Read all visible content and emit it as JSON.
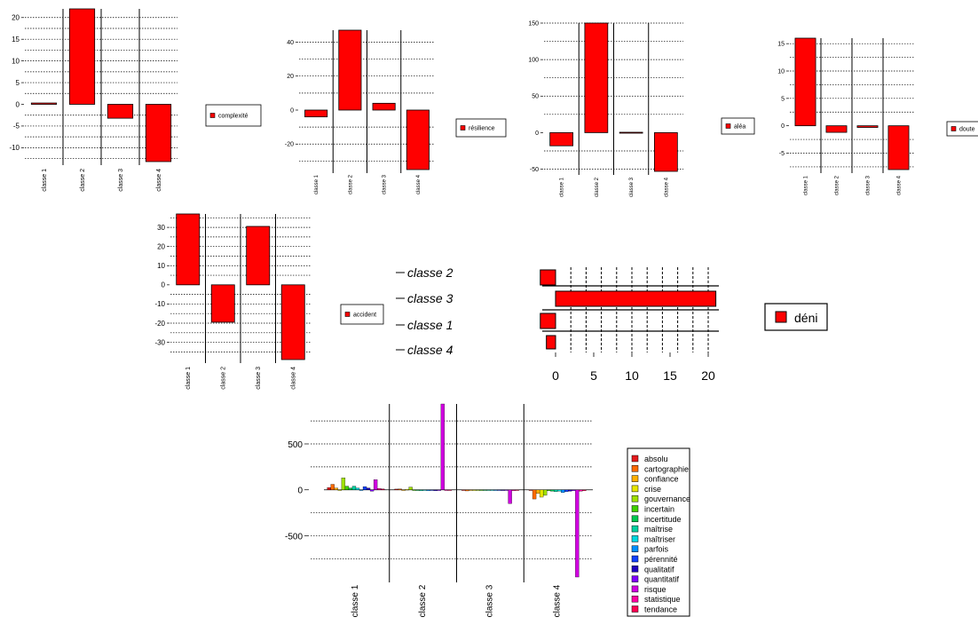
{
  "chart_data": [
    {
      "type": "bar",
      "categories": [
        "classe 1",
        "classe 2",
        "classe 3",
        "classe 4"
      ],
      "values": [
        0.3,
        22,
        -3.2,
        -13.2
      ],
      "yticks": [
        -10,
        -5,
        0,
        5,
        10,
        15,
        20
      ],
      "legend": [
        "complexité"
      ],
      "color": "#ff0000"
    },
    {
      "type": "bar",
      "categories": [
        "classe 1",
        "classe 2",
        "classe 3",
        "classe 4"
      ],
      "values": [
        -4,
        47,
        4,
        -35
      ],
      "yticks": [
        -20,
        0,
        20,
        40
      ],
      "legend": [
        "résilience"
      ],
      "color": "#ff0000"
    },
    {
      "type": "bar",
      "categories": [
        "classe 1",
        "classe 2",
        "classe 3",
        "classe 4"
      ],
      "values": [
        -18,
        150,
        0.5,
        -53
      ],
      "yticks": [
        -50,
        0,
        50,
        100,
        150
      ],
      "legend": [
        "aléa"
      ],
      "color": "#ff0000"
    },
    {
      "type": "bar",
      "categories": [
        "classe 1",
        "classe 2",
        "classe 3",
        "classe 4"
      ],
      "values": [
        16,
        -1.2,
        -0.3,
        -8
      ],
      "yticks": [
        -5,
        0,
        5,
        10,
        15
      ],
      "legend": [
        "doute"
      ],
      "color": "#ff0000"
    },
    {
      "type": "bar",
      "categories": [
        "classe 1",
        "classe 2",
        "classe 3",
        "classe 4"
      ],
      "values": [
        37,
        -19.5,
        30.5,
        -39
      ],
      "yticks": [
        -30,
        -20,
        -10,
        0,
        10,
        20,
        30
      ],
      "legend": [
        "accident"
      ],
      "color": "#ff0000"
    },
    {
      "type": "dendrogram-labels",
      "labels": [
        {
          "text": "classe 2",
          "color": "#7fff00"
        },
        {
          "text": "classe 3",
          "color": "#00e5ee"
        },
        {
          "text": "classe 1",
          "color": "#ff2222"
        },
        {
          "text": "classe 4",
          "color": "#9b30ff"
        }
      ]
    },
    {
      "type": "bar",
      "orientation": "horizontal",
      "values": [
        -2,
        21,
        -2,
        -1.2
      ],
      "xticks": [
        0,
        5,
        10,
        15,
        20
      ],
      "legend": [
        "déni"
      ],
      "color": "#ff0000"
    },
    {
      "type": "bar",
      "categories": [
        "classe 1",
        "classe 2",
        "classe 3",
        "classe 4"
      ],
      "yticks": [
        -500,
        0,
        500
      ],
      "series": [
        {
          "name": "absolu",
          "color": "#e41a1c",
          "values": [
            25,
            8,
            -5,
            -3
          ]
        },
        {
          "name": "cartographie",
          "color": "#ff6a00",
          "values": [
            60,
            10,
            -12,
            -100
          ]
        },
        {
          "name": "confiance",
          "color": "#ffb000",
          "values": [
            20,
            -5,
            -5,
            -40
          ]
        },
        {
          "name": "crise",
          "color": "#e6e600",
          "values": [
            -5,
            5,
            -8,
            -80
          ]
        },
        {
          "name": "gouvernance",
          "color": "#a0e000",
          "values": [
            130,
            30,
            -3,
            -60
          ]
        },
        {
          "name": "incertain",
          "color": "#40d000",
          "values": [
            40,
            -5,
            -2,
            -10
          ]
        },
        {
          "name": "incertitude",
          "color": "#00c850",
          "values": [
            20,
            -8,
            -3,
            -15
          ]
        },
        {
          "name": "maîtrise",
          "color": "#00d0a0",
          "values": [
            40,
            -10,
            -6,
            -20
          ]
        },
        {
          "name": "maîtriser",
          "color": "#00d8e0",
          "values": [
            20,
            -5,
            -4,
            -15
          ]
        },
        {
          "name": "parfois",
          "color": "#0090ff",
          "values": [
            -5,
            -10,
            -8,
            -30
          ]
        },
        {
          "name": "pérennité",
          "color": "#1040ff",
          "values": [
            35,
            -5,
            -5,
            -20
          ]
        },
        {
          "name": "qualitatif",
          "color": "#2000c0",
          "values": [
            20,
            -10,
            -8,
            -15
          ]
        },
        {
          "name": "quantitatif",
          "color": "#8000ff",
          "values": [
            -15,
            -8,
            -5,
            -10
          ]
        },
        {
          "name": "risque",
          "color": "#d000e0",
          "values": [
            110,
            935,
            -150,
            -950
          ]
        },
        {
          "name": "statistique",
          "color": "#ff00a0",
          "values": [
            15,
            -5,
            -10,
            -15
          ]
        },
        {
          "name": "tendance",
          "color": "#ff0050",
          "values": [
            10,
            -5,
            -5,
            -10
          ]
        }
      ]
    }
  ]
}
